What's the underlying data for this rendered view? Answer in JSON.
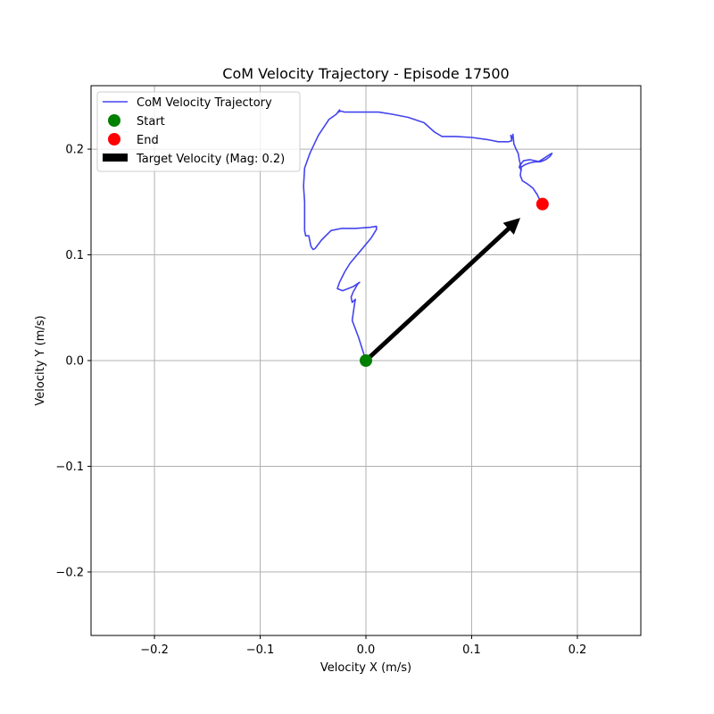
{
  "chart_data": {
    "type": "line",
    "title": "CoM Velocity Trajectory - Episode 17500",
    "xlabel": "Velocity X (m/s)",
    "ylabel": "Velocity Y (m/s)",
    "xlim": [
      -0.26,
      0.26
    ],
    "ylim": [
      -0.26,
      0.26
    ],
    "xticks": [
      -0.2,
      -0.1,
      0.0,
      0.1,
      0.2
    ],
    "yticks": [
      -0.2,
      -0.1,
      0.0,
      0.1,
      0.2
    ],
    "xtick_labels": [
      "−0.2",
      "−0.1",
      "0.0",
      "0.1",
      "0.2"
    ],
    "ytick_labels": [
      "−0.2",
      "−0.1",
      "0.0",
      "0.1",
      "0.2"
    ],
    "grid": true,
    "legend_position": "top-left",
    "series": [
      {
        "name": "CoM Velocity Trajectory",
        "color": "#4444ee",
        "points": [
          [
            0.0,
            0.0
          ],
          [
            -0.007,
            0.022
          ],
          [
            -0.013,
            0.038
          ],
          [
            -0.011,
            0.052
          ],
          [
            -0.01,
            0.058
          ],
          [
            -0.013,
            0.055
          ],
          [
            -0.014,
            0.06
          ],
          [
            -0.012,
            0.065
          ],
          [
            -0.008,
            0.072
          ],
          [
            -0.006,
            0.074
          ],
          [
            -0.012,
            0.07
          ],
          [
            -0.022,
            0.066
          ],
          [
            -0.027,
            0.068
          ],
          [
            -0.025,
            0.074
          ],
          [
            -0.02,
            0.084
          ],
          [
            -0.015,
            0.092
          ],
          [
            -0.005,
            0.104
          ],
          [
            0.005,
            0.116
          ],
          [
            0.01,
            0.124
          ],
          [
            0.01,
            0.127
          ],
          [
            0.004,
            0.126
          ],
          [
            -0.01,
            0.125
          ],
          [
            -0.023,
            0.125
          ],
          [
            -0.033,
            0.123
          ],
          [
            -0.042,
            0.114
          ],
          [
            -0.048,
            0.106
          ],
          [
            -0.05,
            0.105
          ],
          [
            -0.052,
            0.108
          ],
          [
            -0.054,
            0.118
          ],
          [
            -0.057,
            0.118
          ],
          [
            -0.058,
            0.123
          ],
          [
            -0.058,
            0.135
          ],
          [
            -0.058,
            0.15
          ],
          [
            -0.059,
            0.165
          ],
          [
            -0.058,
            0.182
          ],
          [
            -0.053,
            0.196
          ],
          [
            -0.045,
            0.213
          ],
          [
            -0.035,
            0.228
          ],
          [
            -0.028,
            0.233
          ],
          [
            -0.025,
            0.237
          ],
          [
            -0.026,
            0.235
          ],
          [
            -0.024,
            0.236
          ],
          [
            -0.02,
            0.235
          ],
          [
            -0.012,
            0.235
          ],
          [
            -0.003,
            0.235
          ],
          [
            0.004,
            0.235
          ],
          [
            0.012,
            0.235
          ],
          [
            0.025,
            0.233
          ],
          [
            0.04,
            0.23
          ],
          [
            0.055,
            0.225
          ],
          [
            0.065,
            0.216
          ],
          [
            0.072,
            0.212
          ],
          [
            0.085,
            0.212
          ],
          [
            0.1,
            0.211
          ],
          [
            0.115,
            0.209
          ],
          [
            0.125,
            0.207
          ],
          [
            0.135,
            0.207
          ],
          [
            0.138,
            0.208
          ],
          [
            0.137,
            0.213
          ],
          [
            0.138,
            0.21
          ],
          [
            0.139,
            0.214
          ],
          [
            0.14,
            0.205
          ],
          [
            0.142,
            0.2
          ],
          [
            0.144,
            0.196
          ],
          [
            0.145,
            0.19
          ],
          [
            0.146,
            0.186
          ],
          [
            0.145,
            0.183
          ],
          [
            0.147,
            0.18
          ],
          [
            0.146,
            0.185
          ],
          [
            0.149,
            0.189
          ],
          [
            0.155,
            0.19
          ],
          [
            0.16,
            0.189
          ],
          [
            0.165,
            0.188
          ],
          [
            0.17,
            0.19
          ],
          [
            0.174,
            0.193
          ],
          [
            0.176,
            0.196
          ],
          [
            0.174,
            0.195
          ],
          [
            0.168,
            0.191
          ],
          [
            0.163,
            0.188
          ],
          [
            0.16,
            0.188
          ],
          [
            0.155,
            0.187
          ],
          [
            0.15,
            0.185
          ],
          [
            0.147,
            0.183
          ],
          [
            0.146,
            0.175
          ],
          [
            0.148,
            0.17
          ],
          [
            0.153,
            0.167
          ],
          [
            0.158,
            0.163
          ],
          [
            0.162,
            0.157
          ],
          [
            0.164,
            0.153
          ],
          [
            0.167,
            0.148
          ]
        ]
      },
      {
        "name": "Start",
        "color": "#008000",
        "points": [
          [
            0.0,
            0.0
          ]
        ]
      },
      {
        "name": "End",
        "color": "#ff0000",
        "points": [
          [
            0.167,
            0.148
          ]
        ]
      },
      {
        "name": "Target Velocity (Mag: 0.2)",
        "color": "#000000",
        "arrow": {
          "from": [
            0.0,
            0.0
          ],
          "to": [
            0.146,
            0.135
          ]
        }
      }
    ]
  }
}
